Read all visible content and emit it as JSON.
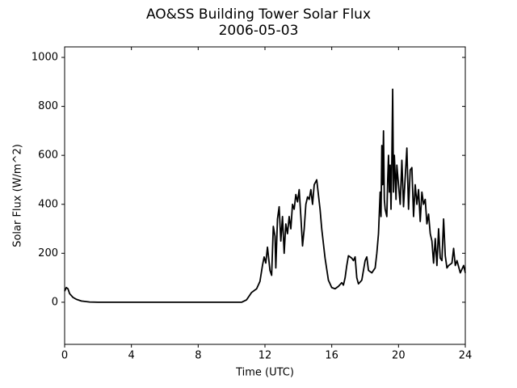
{
  "chart_data": {
    "type": "line",
    "title": "AO&SS Building Tower Solar Flux",
    "subtitle": "2006-05-03",
    "x_label": "Time (UTC)",
    "y_label": "Solar Flux (W/m^2)",
    "color": "#000000",
    "x": [
      0,
      0.1,
      0.2,
      0.3,
      0.5,
      0.7,
      1,
      1.5,
      2,
      4,
      6,
      8,
      10,
      10.6,
      10.9,
      11.2,
      11.5,
      11.7,
      11.85,
      11.95,
      12.05,
      12.15,
      12.3,
      12.4,
      12.5,
      12.6,
      12.65,
      12.75,
      12.85,
      12.95,
      13.05,
      13.15,
      13.25,
      13.35,
      13.45,
      13.55,
      13.65,
      13.75,
      13.85,
      13.95,
      14.05,
      14.15,
      14.25,
      14.35,
      14.45,
      14.55,
      14.65,
      14.75,
      14.85,
      14.95,
      15.1,
      15.2,
      15.3,
      15.4,
      15.6,
      15.8,
      16,
      16.2,
      16.4,
      16.6,
      16.7,
      16.8,
      16.9,
      17,
      17.2,
      17.3,
      17.4,
      17.5,
      17.6,
      17.8,
      17.9,
      18,
      18.1,
      18.2,
      18.4,
      18.6,
      18.7,
      18.8,
      18.9,
      18.95,
      19,
      19.05,
      19.1,
      19.15,
      19.2,
      19.3,
      19.35,
      19.4,
      19.45,
      19.5,
      19.55,
      19.6,
      19.65,
      19.7,
      19.75,
      19.8,
      19.85,
      19.9,
      20,
      20.1,
      20.2,
      20.3,
      20.4,
      20.5,
      20.6,
      20.7,
      20.8,
      20.9,
      21,
      21.1,
      21.2,
      21.3,
      21.4,
      21.5,
      21.6,
      21.7,
      21.8,
      21.9,
      22,
      22.1,
      22.2,
      22.3,
      22.4,
      22.5,
      22.6,
      22.7,
      22.8,
      22.9,
      23,
      23.2,
      23.3,
      23.4,
      23.5,
      23.7,
      23.9,
      24
    ],
    "values": [
      45,
      60,
      55,
      35,
      20,
      12,
      5,
      1,
      0,
      0,
      0,
      0,
      0,
      0,
      10,
      40,
      55,
      85,
      150,
      185,
      160,
      225,
      130,
      110,
      310,
      270,
      140,
      340,
      390,
      250,
      350,
      200,
      320,
      280,
      350,
      300,
      400,
      380,
      440,
      410,
      460,
      350,
      230,
      300,
      400,
      430,
      420,
      460,
      400,
      480,
      500,
      440,
      380,
      300,
      180,
      90,
      60,
      55,
      65,
      80,
      70,
      100,
      150,
      190,
      180,
      170,
      185,
      100,
      75,
      90,
      130,
      170,
      185,
      130,
      120,
      140,
      200,
      280,
      450,
      350,
      640,
      480,
      700,
      420,
      380,
      350,
      500,
      600,
      450,
      560,
      380,
      580,
      870,
      450,
      600,
      520,
      420,
      560,
      480,
      400,
      580,
      390,
      510,
      630,
      380,
      540,
      550,
      350,
      480,
      400,
      460,
      330,
      450,
      400,
      420,
      320,
      360,
      280,
      250,
      160,
      260,
      150,
      300,
      180,
      170,
      340,
      190,
      140,
      150,
      160,
      220,
      150,
      170,
      120,
      150,
      120
    ],
    "xlim": [
      0,
      24
    ],
    "xticks": [
      0,
      4,
      8,
      12,
      16,
      20,
      24
    ],
    "ylim": [
      -172,
      1043
    ],
    "yticks": [
      0,
      200,
      400,
      600,
      800,
      1000
    ],
    "grid": false
  }
}
